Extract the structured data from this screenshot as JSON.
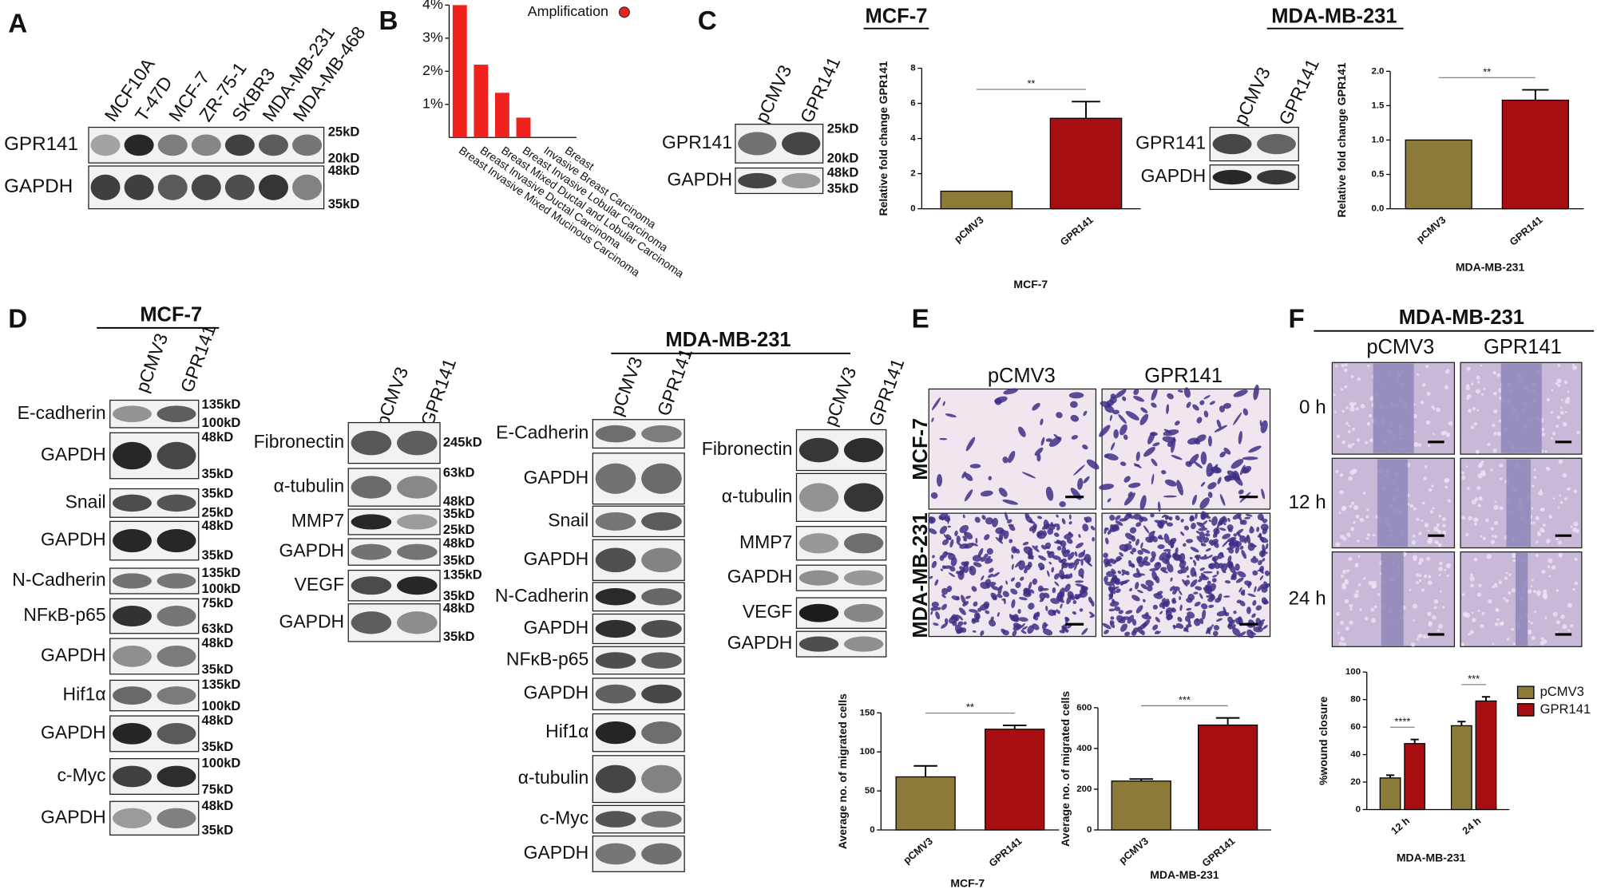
{
  "panel_labels": [
    "A",
    "B",
    "C",
    "D",
    "E",
    "F"
  ],
  "panel_a": {
    "lanes": [
      "MCF10A",
      "T-47D",
      "MCF-7",
      "ZR-75-1",
      "SKBR3",
      "MDA-MB-231",
      "MDA-MB-468"
    ],
    "rows": [
      {
        "label": "GPR141",
        "sizes": [
          "25kD",
          "20kD"
        ]
      },
      {
        "label": "GAPDH",
        "sizes": [
          "48kD",
          "35kD"
        ]
      }
    ]
  },
  "panel_c": {
    "headings": [
      "MCF-7",
      "MDA-MB-231"
    ],
    "blots": [
      {
        "lanes": [
          "pCMV3",
          "GPR141"
        ],
        "rows": [
          {
            "label": "GPR141",
            "sizes": [
              "25kD",
              "20kD"
            ]
          },
          {
            "label": "GAPDH",
            "sizes": [
              "48kD",
              "35kD"
            ]
          }
        ]
      },
      {
        "lanes": [
          "pCMV3",
          "GPR141"
        ],
        "rows": [
          {
            "label": "GPR141"
          },
          {
            "label": "GAPDH"
          }
        ]
      }
    ]
  },
  "panel_d": {
    "headings": [
      "MCF-7",
      "MDA-MB-231"
    ],
    "blots": [
      {
        "lanes": [
          "pCMV3",
          "GPR141"
        ],
        "rows": [
          {
            "label": "E-cadherin",
            "sizes": [
              "135kD",
              "100kD"
            ]
          },
          {
            "label": "GAPDH",
            "sizes": [
              "48kD",
              "35kD"
            ]
          },
          {
            "label": "Snail",
            "sizes": [
              "35kD",
              "25kD"
            ]
          },
          {
            "label": "GAPDH",
            "sizes": [
              "48kD",
              "35kD"
            ]
          },
          {
            "label": "N-Cadherin",
            "sizes": [
              "135kD",
              "100kD"
            ]
          },
          {
            "label": "NFκB-p65",
            "sizes": [
              "75kD",
              "63kD"
            ]
          },
          {
            "label": "GAPDH",
            "sizes": [
              "48kD",
              "35kD"
            ]
          },
          {
            "label": "Hif1α",
            "sizes": [
              "135kD",
              "100kD"
            ]
          },
          {
            "label": "GAPDH",
            "sizes": [
              "48kD",
              "35kD"
            ]
          },
          {
            "label": "c-Myc",
            "sizes": [
              "100kD",
              "75kD"
            ]
          },
          {
            "label": "GAPDH",
            "sizes": [
              "48kD",
              "35kD"
            ]
          }
        ]
      },
      {
        "lanes": [
          "pCMV3",
          "GPR141"
        ],
        "rows": [
          {
            "label": "Fibronectin",
            "sizes": [
              "245kD"
            ]
          },
          {
            "label": "α-tubulin",
            "sizes": [
              "63kD",
              "48kD"
            ]
          },
          {
            "label": "MMP7",
            "sizes": [
              "35kD",
              "25kD"
            ]
          },
          {
            "label": "GAPDH",
            "sizes": [
              "48kD",
              "35kD"
            ]
          },
          {
            "label": "VEGF",
            "sizes": [
              "135kD",
              "35kD"
            ]
          },
          {
            "label": "GAPDH",
            "sizes": [
              "48kD",
              "35kD"
            ]
          }
        ]
      },
      {
        "lanes": [
          "pCMV3",
          "GPR141"
        ],
        "rows": [
          {
            "label": "E-Cadherin"
          },
          {
            "label": "GAPDH"
          },
          {
            "label": "Snail"
          },
          {
            "label": "GAPDH"
          },
          {
            "label": "N-Cadherin"
          },
          {
            "label": "GAPDH"
          },
          {
            "label": "NFκB-p65"
          },
          {
            "label": "GAPDH"
          },
          {
            "label": "Hif1α"
          },
          {
            "label": "α-tubulin"
          },
          {
            "label": "c-Myc"
          },
          {
            "label": "GAPDH"
          }
        ]
      },
      {
        "lanes": [
          "pCMV3",
          "GPR141"
        ],
        "rows": [
          {
            "label": "Fibronectin"
          },
          {
            "label": "α-tubulin"
          },
          {
            "label": "MMP7"
          },
          {
            "label": "GAPDH"
          },
          {
            "label": "VEGF"
          },
          {
            "label": "GAPDH"
          }
        ]
      }
    ]
  },
  "panel_e": {
    "columns": [
      "pCMV3",
      "GPR141"
    ],
    "rows": [
      "MCF-7",
      "MDA-MB-231"
    ]
  },
  "panel_f": {
    "heading": "MDA-MB-231",
    "columns": [
      "pCMV3",
      "GPR141"
    ],
    "rows": [
      "0 h",
      "12 h",
      "24 h"
    ]
  },
  "chart_data": [
    {
      "type": "bar",
      "categories": [
        "Breast Invasive Mixed Mucinous Carcinoma",
        "Breast Invasive Ductal Carcinoma",
        "Breast Mixed Ductal and Lobular Carcinoma",
        "Breast Invasive Lobular Carcinoma",
        "Invasive Breast Carcinoma",
        "Breast"
      ],
      "series": [
        {
          "name": "Amplification",
          "color": "#f0221d",
          "values": [
            4.0,
            2.2,
            1.35,
            0.6,
            0,
            0
          ]
        }
      ],
      "ylim": [
        0,
        4
      ],
      "yticks": [
        {
          "value": 1,
          "label": "1%"
        },
        {
          "value": 2,
          "label": "2%"
        },
        {
          "value": 3,
          "label": "3%"
        },
        {
          "value": 4,
          "label": "4%"
        }
      ]
    },
    {
      "type": "bar",
      "categories": [
        "pCMV3",
        "GPR141"
      ],
      "values": [
        1,
        5.15
      ],
      "errors": [
        null,
        0.95
      ],
      "colors": [
        "#8c7b38",
        "#a60e12"
      ],
      "ylim": [
        0,
        8
      ],
      "yticks": [
        0,
        2,
        4,
        6,
        8
      ],
      "y_label": "Relative fold change GPR141",
      "x_label": "MCF-7",
      "significance": "**"
    },
    {
      "type": "bar",
      "categories": [
        "pCMV3",
        "GPR141"
      ],
      "values": [
        1.0,
        1.58
      ],
      "errors": [
        null,
        0.15
      ],
      "colors": [
        "#8c7b38",
        "#a60e12"
      ],
      "ylim": [
        0,
        2
      ],
      "yticks": [
        {
          "value": 0,
          "label": "0.0"
        },
        0.5,
        {
          "value": 1,
          "label": "1.0"
        },
        1.5,
        {
          "value": 2,
          "label": "2.0"
        }
      ],
      "y_label": "Relative fold change GPR141",
      "x_label": "MDA-MB-231",
      "significance": "**"
    },
    {
      "type": "bar",
      "categories": [
        "pCMV3",
        "GPR141"
      ],
      "values": [
        68,
        129
      ],
      "errors": [
        14,
        5
      ],
      "colors": [
        "#8c7b38",
        "#a60e12"
      ],
      "ylim": [
        0,
        150
      ],
      "yticks": [
        0,
        50,
        100,
        150
      ],
      "y_label": "Average no. of migrated cells",
      "x_label": "MCF-7",
      "significance": "**"
    },
    {
      "type": "bar",
      "categories": [
        "pCMV3",
        "GPR141"
      ],
      "values": [
        240,
        515
      ],
      "errors": [
        10,
        35
      ],
      "colors": [
        "#8c7b38",
        "#a60e12"
      ],
      "ylim": [
        0,
        600
      ],
      "yticks": [
        0,
        200,
        400,
        600
      ],
      "y_label": "Average no. of migrated cells",
      "x_label": "MDA-MB-231",
      "significance": "***"
    },
    {
      "type": "bar",
      "categories": [
        "12 h",
        "24 h"
      ],
      "series": [
        {
          "name": "pCMV3",
          "color": "#8c7b38",
          "values": [
            23,
            61
          ],
          "errors": [
            2,
            3
          ]
        },
        {
          "name": "GPR141",
          "color": "#a60e12",
          "values": [
            48,
            79
          ],
          "errors": [
            3,
            3
          ]
        }
      ],
      "ylim": [
        0,
        100
      ],
      "yticks": [
        0,
        20,
        40,
        60,
        80,
        100
      ],
      "y_label": "%wound closure",
      "x_label": "MDA-MB-231",
      "significance": [
        "****",
        "***"
      ]
    }
  ]
}
